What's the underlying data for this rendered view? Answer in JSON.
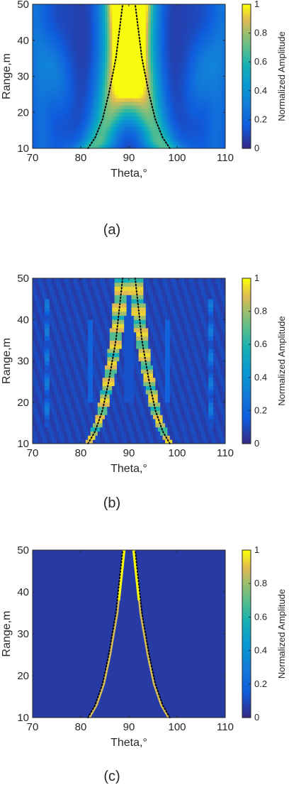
{
  "chart_data": [
    {
      "type": "heatmap",
      "caption": "(a)",
      "xlabel": "Theta,°",
      "ylabel": "Range,m",
      "colorbar_label": "Normalized Amplitude",
      "xlim": [
        70,
        110
      ],
      "ylim": [
        10,
        50
      ],
      "clim": [
        0,
        1
      ],
      "x_ticks": [
        "70",
        "80",
        "90",
        "100",
        "110"
      ],
      "y_ticks": [
        "10",
        "20",
        "30",
        "40",
        "50"
      ],
      "colorbar_ticks": [
        "0",
        "0.2",
        "0.4",
        "0.6",
        "0.8",
        "1"
      ],
      "colormap": "parula",
      "dotted_curves": {
        "left": [
          [
            81.5,
            10
          ],
          [
            83,
            13
          ],
          [
            84.5,
            18
          ],
          [
            85.8,
            25
          ],
          [
            87.3,
            35
          ],
          [
            88.7,
            50
          ]
        ],
        "right": [
          [
            98.5,
            10
          ],
          [
            97,
            13
          ],
          [
            95.5,
            18
          ],
          [
            94.2,
            25
          ],
          [
            92.7,
            35
          ],
          [
            91.3,
            50
          ]
        ],
        "color": "#000000"
      }
    },
    {
      "type": "heatmap",
      "caption": "(b)",
      "xlabel": "Theta,°",
      "ylabel": "Range,m",
      "colorbar_label": "Normalized Amplitude",
      "xlim": [
        70,
        110
      ],
      "ylim": [
        10,
        50
      ],
      "clim": [
        0,
        1
      ],
      "x_ticks": [
        "70",
        "80",
        "90",
        "100",
        "110"
      ],
      "y_ticks": [
        "10",
        "20",
        "30",
        "40",
        "50"
      ],
      "colorbar_ticks": [
        "0",
        "0.2",
        "0.4",
        "0.6",
        "0.8",
        "1"
      ],
      "colormap": "parula",
      "dotted_curves": {
        "left": [
          [
            81.5,
            10
          ],
          [
            83,
            13
          ],
          [
            84.5,
            18
          ],
          [
            85.8,
            25
          ],
          [
            87.3,
            35
          ],
          [
            88.7,
            50
          ]
        ],
        "right": [
          [
            98.5,
            10
          ],
          [
            97,
            13
          ],
          [
            95.5,
            18
          ],
          [
            94.2,
            25
          ],
          [
            92.7,
            35
          ],
          [
            91.3,
            50
          ]
        ],
        "color": "#000000"
      }
    },
    {
      "type": "heatmap",
      "caption": "(c)",
      "xlabel": "Theta,°",
      "ylabel": "Range,m",
      "colorbar_label": "Normalized Amplitude",
      "xlim": [
        70,
        110
      ],
      "ylim": [
        10,
        50
      ],
      "clim": [
        0,
        1
      ],
      "x_ticks": [
        "70",
        "80",
        "90",
        "100",
        "110"
      ],
      "y_ticks": [
        "10",
        "20",
        "30",
        "40",
        "50"
      ],
      "colorbar_ticks": [
        "0",
        "0.2",
        "0.4",
        "0.6",
        "0.8",
        "1"
      ],
      "colormap": "parula",
      "dotted_curves": {
        "left": [
          [
            81.5,
            10
          ],
          [
            83,
            13
          ],
          [
            84.5,
            18
          ],
          [
            85.8,
            25
          ],
          [
            87.3,
            35
          ],
          [
            88.7,
            50
          ]
        ],
        "right": [
          [
            98.5,
            10
          ],
          [
            97,
            13
          ],
          [
            95.5,
            18
          ],
          [
            94.2,
            25
          ],
          [
            92.7,
            35
          ],
          [
            91.3,
            50
          ]
        ],
        "color": "#000000"
      }
    }
  ]
}
